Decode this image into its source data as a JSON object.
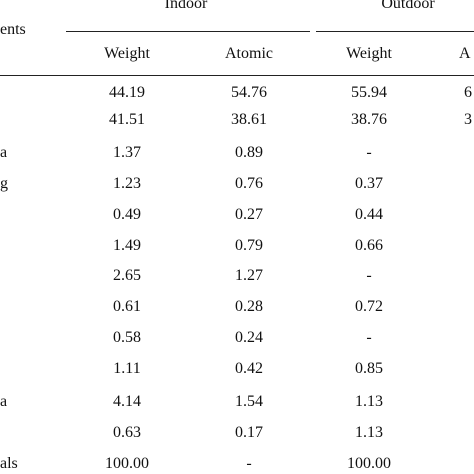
{
  "table": {
    "header": {
      "elements_fragment": "ents",
      "group_indoor": "Indoor",
      "group_outdoor": "Outdoor",
      "sub_weight_indoor": "Weight",
      "sub_atomic_indoor": "Atomic",
      "sub_weight_outdoor": "Weight",
      "sub_atomic_outdoor_fragment": "A"
    },
    "rows": [
      {
        "label": "",
        "iw": "44.19",
        "ia": "54.76",
        "ow": "55.94",
        "oa": "6"
      },
      {
        "label": "",
        "iw": "41.51",
        "ia": "38.61",
        "ow": "38.76",
        "oa": "3"
      },
      {
        "label": "a",
        "iw": "1.37",
        "ia": "0.89",
        "ow": "-",
        "oa": ""
      },
      {
        "label": "g",
        "iw": "1.23",
        "ia": "0.76",
        "ow": "0.37",
        "oa": ""
      },
      {
        "label": "",
        "iw": "0.49",
        "ia": "0.27",
        "ow": "0.44",
        "oa": ""
      },
      {
        "label": "",
        "iw": "1.49",
        "ia": "0.79",
        "ow": "0.66",
        "oa": ""
      },
      {
        "label": "",
        "iw": "2.65",
        "ia": "1.27",
        "ow": "-",
        "oa": ""
      },
      {
        "label": "",
        "iw": "0.61",
        "ia": "0.28",
        "ow": "0.72",
        "oa": ""
      },
      {
        "label": "",
        "iw": "0.58",
        "ia": "0.24",
        "ow": "-",
        "oa": ""
      },
      {
        "label": "",
        "iw": "1.11",
        "ia": "0.42",
        "ow": "0.85",
        "oa": ""
      },
      {
        "label": "a",
        "iw": "4.14",
        "ia": "1.54",
        "ow": "1.13",
        "oa": ""
      },
      {
        "label": "",
        "iw": "0.63",
        "ia": "0.17",
        "ow": "1.13",
        "oa": ""
      },
      {
        "label": "als",
        "iw": "100.00",
        "ia": "-",
        "ow": "100.00",
        "oa": ""
      }
    ]
  }
}
